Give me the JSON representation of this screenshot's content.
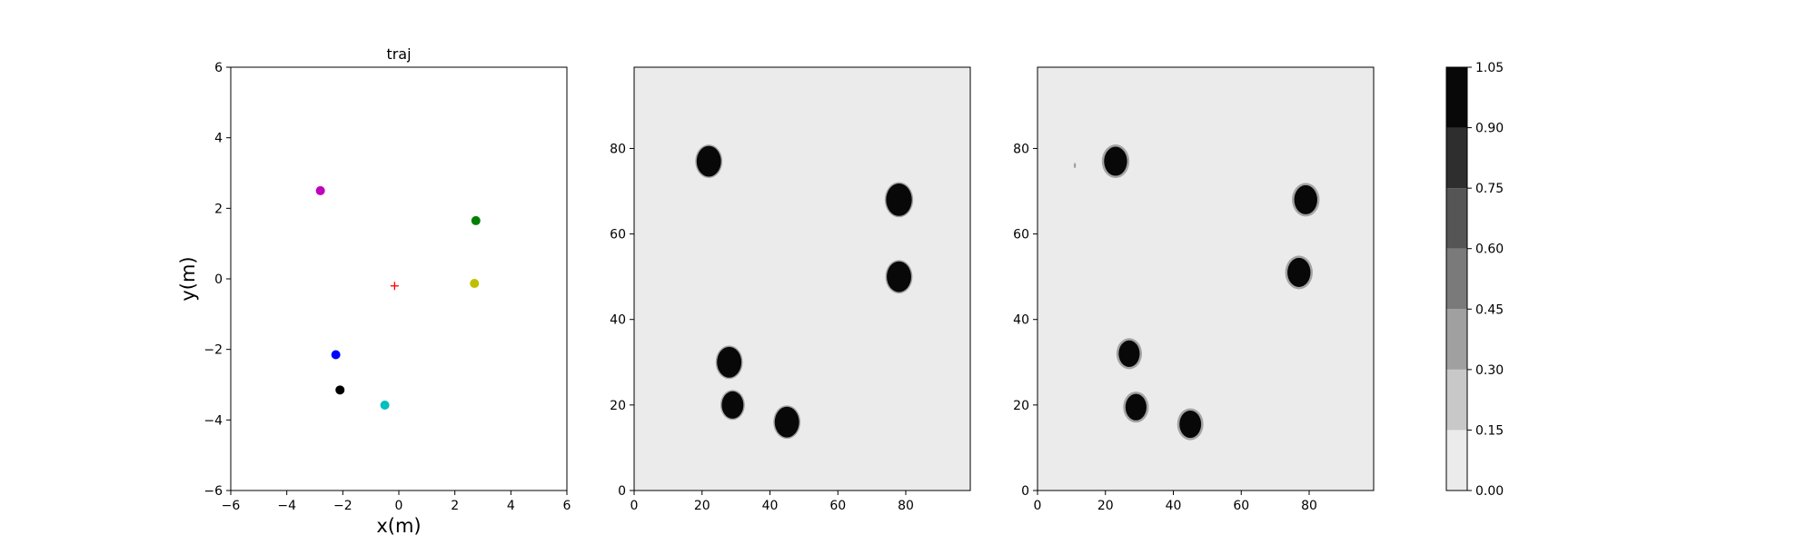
{
  "chart_data": [
    {
      "type": "scatter",
      "title": "traj",
      "xlabel": "x(m)",
      "ylabel": "y(m)",
      "xlim": [
        -6,
        6
      ],
      "ylim": [
        -6,
        6
      ],
      "xticks": [
        -6,
        -4,
        -2,
        0,
        2,
        4,
        6
      ],
      "yticks": [
        -6,
        -4,
        -2,
        0,
        2,
        4,
        6
      ],
      "xticklabels": [
        "−6",
        "−4",
        "−2",
        "0",
        "2",
        "4",
        "6"
      ],
      "yticklabels": [
        "−6",
        "−4",
        "−2",
        "0",
        "2",
        "4",
        "6"
      ],
      "grid": false,
      "points": [
        {
          "x": -2.8,
          "y": 2.5,
          "color": "#bf00bf",
          "marker": "circle"
        },
        {
          "x": 2.75,
          "y": 1.65,
          "color": "#008000",
          "marker": "circle"
        },
        {
          "x": 2.7,
          "y": -0.13,
          "color": "#bfbf00",
          "marker": "circle"
        },
        {
          "x": -2.25,
          "y": -2.15,
          "color": "#0000ff",
          "marker": "circle"
        },
        {
          "x": -2.1,
          "y": -3.15,
          "color": "#000000",
          "marker": "circle"
        },
        {
          "x": -0.5,
          "y": -3.58,
          "color": "#00bfbf",
          "marker": "circle"
        },
        {
          "x": -0.15,
          "y": -0.2,
          "color": "#ff0000",
          "marker": "plus"
        }
      ]
    },
    {
      "type": "heatmap",
      "title": "",
      "xlim": [
        0,
        99
      ],
      "ylim": [
        0,
        99
      ],
      "xticks": [
        0,
        20,
        40,
        60,
        80
      ],
      "yticks": [
        0,
        20,
        40,
        60,
        80
      ],
      "background_value": 0.05,
      "blobs": [
        {
          "x": 22,
          "y": 77,
          "r": 3.6,
          "value": 1.0
        },
        {
          "x": 78,
          "y": 68,
          "r": 3.8,
          "value": 1.0
        },
        {
          "x": 78,
          "y": 50,
          "r": 3.6,
          "value": 1.0
        },
        {
          "x": 28,
          "y": 30,
          "r": 3.6,
          "value": 1.0
        },
        {
          "x": 29,
          "y": 20,
          "r": 3.2,
          "value": 1.0
        },
        {
          "x": 45,
          "y": 16,
          "r": 3.6,
          "value": 1.0
        }
      ]
    },
    {
      "type": "heatmap",
      "title": "",
      "xlim": [
        0,
        99
      ],
      "ylim": [
        0,
        99
      ],
      "xticks": [
        0,
        20,
        40,
        60,
        80
      ],
      "yticks": [
        0,
        20,
        40,
        60,
        80
      ],
      "background_value": 0.05,
      "blobs": [
        {
          "x": 23,
          "y": 77,
          "r": 3.4,
          "value": 1.0
        },
        {
          "x": 79,
          "y": 68,
          "r": 3.4,
          "value": 1.0
        },
        {
          "x": 77,
          "y": 51,
          "r": 3.4,
          "value": 1.0
        },
        {
          "x": 27,
          "y": 32,
          "r": 3.1,
          "value": 1.0
        },
        {
          "x": 29,
          "y": 19.5,
          "r": 3.1,
          "value": 1.0
        },
        {
          "x": 45,
          "y": 15.5,
          "r": 3.2,
          "value": 1.0
        }
      ],
      "specks": [
        {
          "x": 11,
          "y": 76,
          "value": 0.3
        }
      ]
    }
  ],
  "colorbar": {
    "levels": [
      0.0,
      0.15,
      0.3,
      0.45,
      0.6,
      0.75,
      0.9,
      1.05
    ],
    "ticklabels": [
      "0.00",
      "0.15",
      "0.30",
      "0.45",
      "0.60",
      "0.75",
      "0.90",
      "1.05"
    ],
    "band_colors": [
      "#ebebeb",
      "#c8c8c8",
      "#a0a0a0",
      "#7a7a7a",
      "#555555",
      "#2e2e2e",
      "#080808"
    ]
  }
}
